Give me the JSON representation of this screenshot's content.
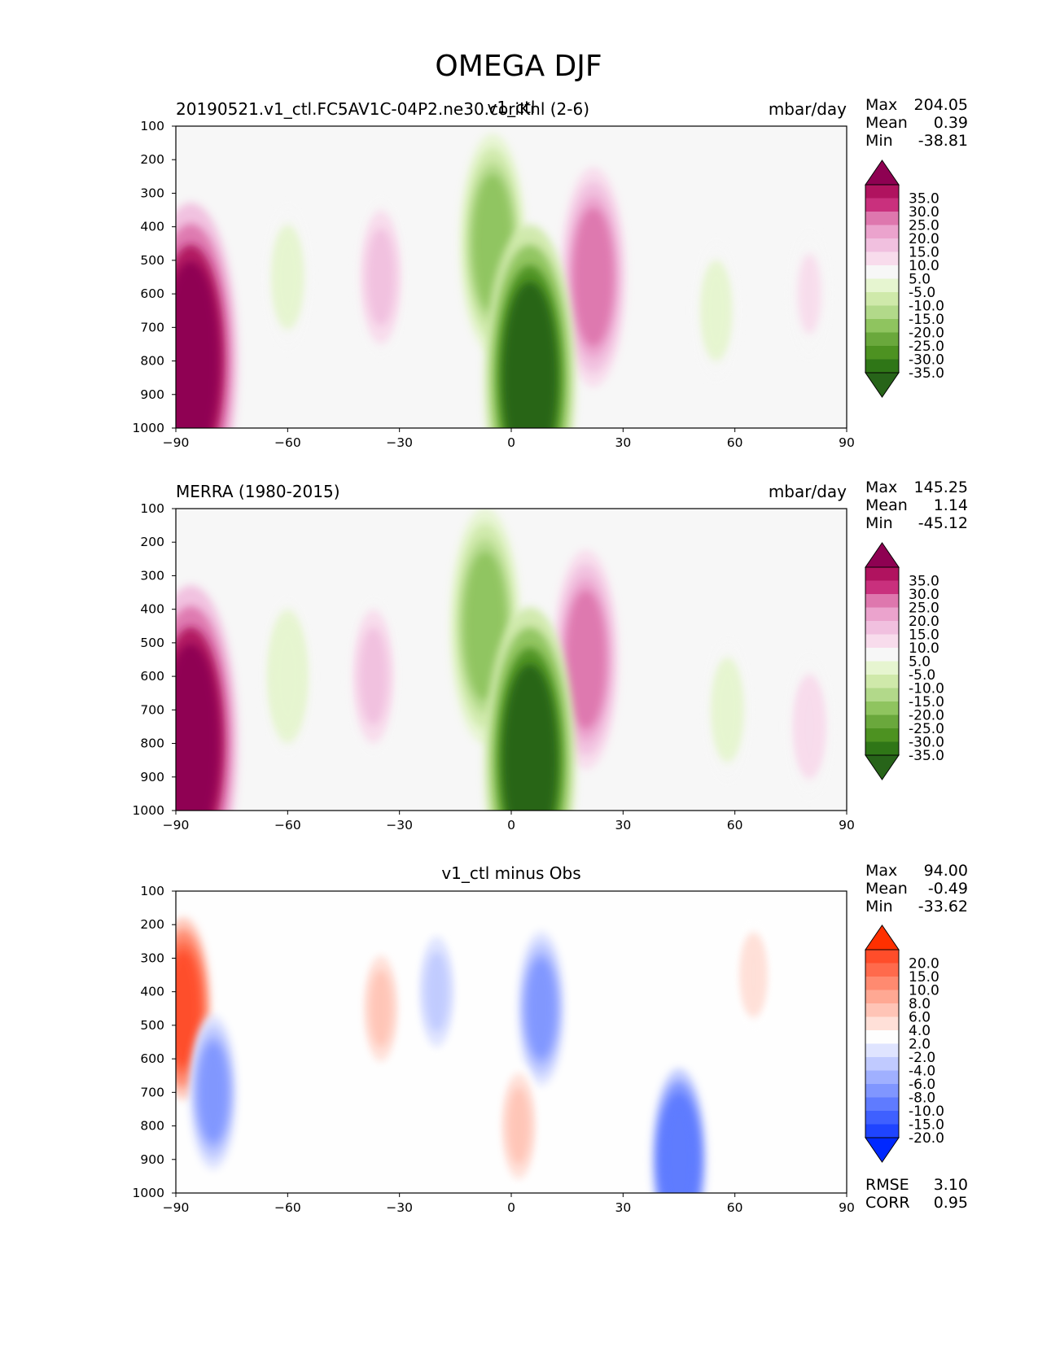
{
  "figure": {
    "title": "OMEGA DJF"
  },
  "panels": [
    {
      "id": "test",
      "left_title": "20190521.v1_ctl.FC5AV1C-04P2.ne30.coriKnl (2-6)",
      "center_title": "v1_ctl",
      "units": "mbar/day",
      "stats": {
        "max_label": "Max",
        "max_value": "204.05",
        "mean_label": "Mean",
        "mean_value": "0.39",
        "min_label": "Min",
        "min_value": "-38.81"
      },
      "colormap": "PiYG"
    },
    {
      "id": "ref",
      "left_title": "MERRA (1980-2015)",
      "center_title": "",
      "units": "mbar/day",
      "stats": {
        "max_label": "Max",
        "max_value": "145.25",
        "mean_label": "Mean",
        "mean_value": "1.14",
        "min_label": "Min",
        "min_value": "-45.12"
      },
      "colormap": "PiYG"
    },
    {
      "id": "diff",
      "left_title": "",
      "center_title": "v1_ctl minus Obs",
      "units": "",
      "stats": {
        "max_label": "Max",
        "max_value": "94.00",
        "mean_label": "Mean",
        "mean_value": "-0.49",
        "min_label": "Min",
        "min_value": "-33.62"
      },
      "extra_stats": {
        "rmse_label": "RMSE",
        "rmse_value": "3.10",
        "corr_label": "CORR",
        "corr_value": "0.95"
      },
      "colormap": "bwr"
    }
  ],
  "colorbars": {
    "omega": {
      "labels": [
        "35.0",
        "30.0",
        "25.0",
        "20.0",
        "15.0",
        "10.0",
        "5.0",
        "-5.0",
        "-10.0",
        "-15.0",
        "-20.0",
        "-25.0",
        "-30.0",
        "-35.0"
      ],
      "colors": [
        "#8e0152",
        "#b0135f",
        "#c9307d",
        "#de77ae",
        "#eba3cd",
        "#f1c0df",
        "#f8dcec",
        "#f7f7f7",
        "#e6f5d0",
        "#cfe9aa",
        "#b2d98a",
        "#8fc45f",
        "#6aa83c",
        "#4d9221",
        "#2f7617",
        "#276419"
      ]
    },
    "diff": {
      "labels": [
        "20.0",
        "15.0",
        "10.0",
        "8.0",
        "6.0",
        "4.0",
        "2.0",
        "-2.0",
        "-4.0",
        "-6.0",
        "-8.0",
        "-10.0",
        "-15.0",
        "-20.0"
      ],
      "colors": [
        "#ff3000",
        "#ff4d2a",
        "#ff6a4c",
        "#ff8a70",
        "#ffa893",
        "#ffc4b6",
        "#ffe0d8",
        "#fefefe",
        "#dfe4ff",
        "#c0caff",
        "#a0b0ff",
        "#8096ff",
        "#5f7bff",
        "#3f60ff",
        "#1f44ff",
        "#0028ff"
      ]
    }
  },
  "chart_data": [
    {
      "type": "contourf",
      "title": "20190521.v1_ctl.FC5AV1C-04P2.ne30.coriKnl (2-6)",
      "units": "mbar/day",
      "x_ticks": [
        -90,
        -60,
        -30,
        0,
        30,
        60,
        90
      ],
      "x_tick_labels": [
        "−90",
        "−60",
        "−30",
        "0",
        "30",
        "60",
        "90"
      ],
      "y_ticks": [
        100,
        200,
        300,
        400,
        500,
        600,
        700,
        800,
        900,
        1000
      ],
      "y_tick_labels": [
        "100",
        "200",
        "300",
        "400",
        "500",
        "600",
        "700",
        "800",
        "900",
        "1000"
      ],
      "xlim": [
        -90,
        90
      ],
      "ylim": [
        1000,
        100
      ],
      "levels": [
        -35,
        -30,
        -25,
        -20,
        -15,
        -10,
        -5,
        5,
        10,
        15,
        20,
        25,
        30,
        35
      ],
      "features": [
        {
          "lat": 22,
          "p": 550,
          "value": 22
        },
        {
          "lat": -5,
          "p": 450,
          "value": -22
        },
        {
          "lat": 5,
          "p": 850,
          "value": -38
        },
        {
          "lat": -35,
          "p": 550,
          "value": 10
        },
        {
          "lat": -60,
          "p": 550,
          "value": -8
        },
        {
          "lat": 55,
          "p": 650,
          "value": -7
        },
        {
          "lat": -86,
          "p": 800,
          "value": 40
        },
        {
          "lat": 80,
          "p": 600,
          "value": 5
        }
      ],
      "stats": {
        "max": 204.05,
        "mean": 0.39,
        "min": -38.81
      }
    },
    {
      "type": "contourf",
      "title": "MERRA (1980-2015)",
      "units": "mbar/day",
      "x_ticks": [
        -90,
        -60,
        -30,
        0,
        30,
        60,
        90
      ],
      "x_tick_labels": [
        "−90",
        "−60",
        "−30",
        "0",
        "30",
        "60",
        "90"
      ],
      "y_ticks": [
        100,
        200,
        300,
        400,
        500,
        600,
        700,
        800,
        900,
        1000
      ],
      "y_tick_labels": [
        "100",
        "200",
        "300",
        "400",
        "500",
        "600",
        "700",
        "800",
        "900",
        "1000"
      ],
      "xlim": [
        -90,
        90
      ],
      "ylim": [
        1000,
        100
      ],
      "levels": [
        -35,
        -30,
        -25,
        -20,
        -15,
        -10,
        -5,
        5,
        10,
        15,
        20,
        25,
        30,
        35
      ],
      "features": [
        {
          "lat": 20,
          "p": 550,
          "value": 22
        },
        {
          "lat": -7,
          "p": 450,
          "value": -25
        },
        {
          "lat": 5,
          "p": 850,
          "value": -38
        },
        {
          "lat": -37,
          "p": 600,
          "value": 10
        },
        {
          "lat": -60,
          "p": 600,
          "value": -10
        },
        {
          "lat": 58,
          "p": 700,
          "value": -8
        },
        {
          "lat": -86,
          "p": 800,
          "value": 40
        },
        {
          "lat": 80,
          "p": 750,
          "value": 8
        }
      ],
      "stats": {
        "max": 145.25,
        "mean": 1.14,
        "min": -45.12
      }
    },
    {
      "type": "contourf",
      "title": "v1_ctl minus Obs",
      "units": "",
      "x_ticks": [
        -90,
        -60,
        -30,
        0,
        30,
        60,
        90
      ],
      "x_tick_labels": [
        "−90",
        "−60",
        "−30",
        "0",
        "30",
        "60",
        "90"
      ],
      "y_ticks": [
        100,
        200,
        300,
        400,
        500,
        600,
        700,
        800,
        900,
        1000
      ],
      "y_tick_labels": [
        "100",
        "200",
        "300",
        "400",
        "500",
        "600",
        "700",
        "800",
        "900",
        "1000"
      ],
      "xlim": [
        -90,
        90
      ],
      "ylim": [
        1000,
        100
      ],
      "levels": [
        -20,
        -15,
        -10,
        -8,
        -6,
        -4,
        -2,
        2,
        4,
        6,
        8,
        10,
        15,
        20
      ],
      "features": [
        {
          "lat": 8,
          "p": 450,
          "value": -10
        },
        {
          "lat": -20,
          "p": 400,
          "value": -5
        },
        {
          "lat": -35,
          "p": 450,
          "value": 4
        },
        {
          "lat": 45,
          "p": 900,
          "value": -15
        },
        {
          "lat": 65,
          "p": 350,
          "value": 3
        },
        {
          "lat": -88,
          "p": 450,
          "value": 15
        },
        {
          "lat": -80,
          "p": 700,
          "value": -10
        },
        {
          "lat": 2,
          "p": 800,
          "value": 4
        }
      ],
      "stats": {
        "max": 94.0,
        "mean": -0.49,
        "min": -33.62,
        "rmse": 3.1,
        "corr": 0.95
      }
    }
  ]
}
